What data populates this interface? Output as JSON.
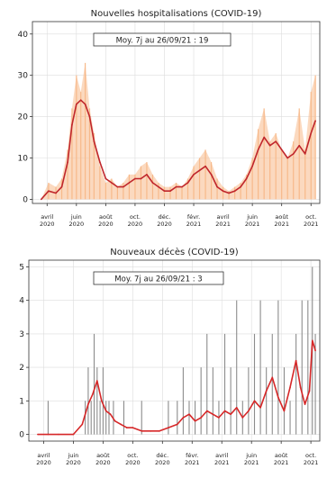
{
  "chart_data": [
    {
      "type": "bar+line",
      "title": "Nouvelles hospitalisations (COVID-19)",
      "annotation": "Moy. 7j au 26/09/21 : 19",
      "ylim": [
        -1,
        43
      ],
      "yticks": [
        0,
        10,
        20,
        30,
        40
      ],
      "grid": true,
      "xticks": [
        {
          "month": 1,
          "l1": "avril",
          "l2": "2020"
        },
        {
          "month": 3,
          "l1": "juin",
          "l2": "2020"
        },
        {
          "month": 5,
          "l1": "août",
          "l2": "2020"
        },
        {
          "month": 7,
          "l1": "oct.",
          "l2": "2020"
        },
        {
          "month": 9,
          "l1": "déc.",
          "l2": "2020"
        },
        {
          "month": 11,
          "l1": "févr.",
          "l2": "2021"
        },
        {
          "month": 13,
          "l1": "avril",
          "l2": "2021"
        },
        {
          "month": 15,
          "l1": "juin",
          "l2": "2021"
        },
        {
          "month": 17,
          "l1": "août",
          "l2": "2021"
        },
        {
          "month": 19,
          "l1": "oct.",
          "l2": "2021"
        }
      ],
      "series": [
        {
          "kind": "daily-bars",
          "color": "#f7b98a",
          "month": [
            0.6,
            1.1,
            1.6,
            2.0,
            2.4,
            2.7,
            3.0,
            3.3,
            3.6,
            3.9,
            4.2,
            4.6,
            5.0,
            5.4,
            5.8,
            6.2,
            6.6,
            7.0,
            7.4,
            7.8,
            8.2,
            8.6,
            9.0,
            9.4,
            9.8,
            10.2,
            10.6,
            11.0,
            11.4,
            11.8,
            12.2,
            12.6,
            13.0,
            13.4,
            13.8,
            14.2,
            14.6,
            15.0,
            15.4,
            15.8,
            16.2,
            16.6,
            17.0,
            17.4,
            17.8,
            18.2,
            18.6,
            19.0,
            19.3
          ],
          "values": [
            0,
            4,
            3,
            5,
            12,
            22,
            30,
            26,
            33,
            22,
            16,
            8,
            4,
            5,
            3,
            4,
            6,
            6,
            8,
            9,
            6,
            4,
            3,
            3,
            4,
            3,
            5,
            8,
            10,
            12,
            9,
            5,
            3,
            2,
            3,
            4,
            6,
            10,
            17,
            22,
            14,
            16,
            12,
            10,
            14,
            22,
            12,
            26,
            30
          ]
        },
        {
          "kind": "moving-average",
          "name": "Moy. 7j",
          "color": "#c0262b",
          "month": [
            0.6,
            1.1,
            1.6,
            2.0,
            2.4,
            2.7,
            3.0,
            3.3,
            3.6,
            3.9,
            4.2,
            4.6,
            5.0,
            5.4,
            5.8,
            6.2,
            6.6,
            7.0,
            7.4,
            7.8,
            8.2,
            8.6,
            9.0,
            9.4,
            9.8,
            10.2,
            10.6,
            11.0,
            11.4,
            11.8,
            12.2,
            12.6,
            13.0,
            13.4,
            13.8,
            14.2,
            14.6,
            15.0,
            15.4,
            15.8,
            16.2,
            16.6,
            17.0,
            17.4,
            17.8,
            18.2,
            18.6,
            19.0,
            19.3
          ],
          "values": [
            0,
            2,
            1.5,
            3,
            9,
            18,
            23,
            24,
            23,
            20,
            14,
            9,
            5,
            4,
            3,
            3,
            4,
            5,
            5,
            6,
            4,
            3,
            2,
            2,
            3,
            3,
            4,
            6,
            7,
            8,
            6,
            3,
            2,
            1.5,
            2,
            3,
            5,
            8,
            12,
            15,
            13,
            14,
            12,
            10,
            11,
            13,
            11,
            16,
            19
          ]
        }
      ]
    },
    {
      "type": "bar+line",
      "title": "Nouveaux décès (COVID-19)",
      "annotation": "Moy. 7j au 26/09/21 : 3",
      "ylim": [
        -0.2,
        5.2
      ],
      "yticks": [
        0,
        1,
        2,
        3,
        4,
        5
      ],
      "grid": true,
      "xticks": [
        {
          "month": 1,
          "l1": "avril",
          "l2": "2020"
        },
        {
          "month": 3,
          "l1": "juin",
          "l2": "2020"
        },
        {
          "month": 5,
          "l1": "août",
          "l2": "2020"
        },
        {
          "month": 7,
          "l1": "oct.",
          "l2": "2020"
        },
        {
          "month": 9,
          "l1": "déc.",
          "l2": "2020"
        },
        {
          "month": 11,
          "l1": "févr.",
          "l2": "2021"
        },
        {
          "month": 13,
          "l1": "avril",
          "l2": "2021"
        },
        {
          "month": 15,
          "l1": "juin",
          "l2": "2021"
        },
        {
          "month": 17,
          "l1": "août",
          "l2": "2021"
        },
        {
          "month": 19,
          "l1": "oct.",
          "l2": "2021"
        }
      ],
      "series": [
        {
          "kind": "daily-bars",
          "color": "#8c8c8c",
          "month": [
            1.3,
            3.8,
            4.0,
            4.2,
            4.4,
            4.6,
            4.8,
            5.0,
            5.2,
            5.4,
            5.7,
            6.0,
            6.4,
            6.9,
            7.6,
            8.4,
            9.4,
            10.0,
            10.4,
            10.8,
            11.2,
            11.6,
            12.0,
            12.4,
            12.8,
            13.2,
            13.6,
            14.0,
            14.4,
            14.8,
            15.2,
            15.6,
            16.0,
            16.4,
            16.8,
            17.2,
            17.6,
            18.0,
            18.4,
            18.8,
            19.1,
            19.3
          ],
          "values": [
            1,
            1,
            2,
            1,
            3,
            2,
            1,
            2,
            1,
            1,
            1,
            0,
            1,
            0,
            1,
            0,
            1,
            1,
            2,
            1,
            1,
            2,
            3,
            2,
            1,
            3,
            2,
            4,
            1,
            2,
            3,
            4,
            2,
            3,
            4,
            2,
            1,
            3,
            4,
            4,
            5,
            3
          ]
        },
        {
          "kind": "moving-average",
          "name": "Moy. 7j",
          "color": "#d62728",
          "month": [
            0.6,
            1.3,
            2.0,
            3.0,
            3.6,
            4.0,
            4.3,
            4.6,
            4.9,
            5.2,
            5.5,
            5.8,
            6.2,
            6.6,
            7.0,
            7.6,
            8.2,
            8.8,
            9.4,
            10.0,
            10.4,
            10.8,
            11.2,
            11.6,
            12.0,
            12.4,
            12.8,
            13.2,
            13.6,
            14.0,
            14.4,
            14.8,
            15.2,
            15.6,
            16.0,
            16.4,
            16.8,
            17.2,
            17.6,
            18.0,
            18.3,
            18.6,
            18.9,
            19.1,
            19.3
          ],
          "values": [
            0,
            0,
            0,
            0,
            0.3,
            0.9,
            1.2,
            1.6,
            1.0,
            0.7,
            0.6,
            0.4,
            0.3,
            0.2,
            0.2,
            0.1,
            0.1,
            0.1,
            0.2,
            0.3,
            0.5,
            0.6,
            0.4,
            0.5,
            0.7,
            0.6,
            0.5,
            0.7,
            0.6,
            0.8,
            0.5,
            0.7,
            1.0,
            0.8,
            1.3,
            1.7,
            1.1,
            0.7,
            1.4,
            2.2,
            1.4,
            0.9,
            1.3,
            2.8,
            2.5
          ]
        }
      ]
    }
  ]
}
